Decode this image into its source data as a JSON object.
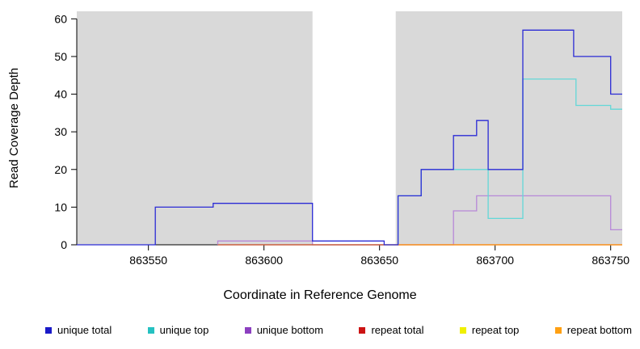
{
  "chart_data": {
    "type": "line",
    "subtype": "step",
    "title": "",
    "xlabel": "Coordinate in Reference Genome",
    "ylabel": "Read Coverage Depth",
    "xlim": [
      863519,
      863755
    ],
    "ylim": [
      0,
      62
    ],
    "xticks": [
      863550,
      863600,
      863650,
      863700,
      863750
    ],
    "yticks": [
      0,
      10,
      20,
      30,
      40,
      50,
      60
    ],
    "plot_background": "#d9d9d9",
    "masked_region": {
      "x0": 863621,
      "x1": 863657,
      "color": "#ffffff"
    },
    "series": [
      {
        "name": "unique total",
        "color": "#2b2bd5",
        "swatch": "#1a1ac8",
        "points": [
          [
            863519,
            0
          ],
          [
            863553,
            0
          ],
          [
            863553,
            10
          ],
          [
            863578,
            10
          ],
          [
            863578,
            11
          ],
          [
            863621,
            11
          ],
          [
            863621,
            1
          ],
          [
            863652,
            1
          ],
          [
            863652,
            0
          ],
          [
            863658,
            0
          ],
          [
            863658,
            13
          ],
          [
            863668,
            13
          ],
          [
            863668,
            20
          ],
          [
            863682,
            20
          ],
          [
            863682,
            29
          ],
          [
            863692,
            29
          ],
          [
            863692,
            33
          ],
          [
            863697,
            33
          ],
          [
            863697,
            20
          ],
          [
            863712,
            20
          ],
          [
            863712,
            57
          ],
          [
            863734,
            57
          ],
          [
            863734,
            50
          ],
          [
            863750,
            50
          ],
          [
            863750,
            40
          ],
          [
            863755,
            40
          ]
        ]
      },
      {
        "name": "unique top",
        "color": "#63d8d8",
        "swatch": "#25c1c1",
        "points": [
          [
            863658,
            0
          ],
          [
            863658,
            13
          ],
          [
            863668,
            13
          ],
          [
            863668,
            20
          ],
          [
            863697,
            20
          ],
          [
            863697,
            7
          ],
          [
            863712,
            7
          ],
          [
            863712,
            44
          ],
          [
            863735,
            44
          ],
          [
            863735,
            37
          ],
          [
            863750,
            37
          ],
          [
            863750,
            36
          ],
          [
            863755,
            36
          ]
        ]
      },
      {
        "name": "unique bottom",
        "color": "#b788d8",
        "swatch": "#8c3fc0",
        "points": [
          [
            863580,
            0
          ],
          [
            863580,
            1
          ],
          [
            863621,
            1
          ],
          [
            863621,
            0
          ],
          [
            863682,
            0
          ],
          [
            863682,
            9
          ],
          [
            863692,
            9
          ],
          [
            863692,
            13
          ],
          [
            863750,
            13
          ],
          [
            863750,
            4
          ],
          [
            863755,
            4
          ]
        ]
      },
      {
        "name": "repeat total",
        "color": "#c04040",
        "swatch": "#cc1414",
        "points": [
          [
            863580,
            0
          ],
          [
            863755,
            0
          ]
        ]
      },
      {
        "name": "repeat top",
        "color": "#ffff00",
        "swatch": "#f0f000",
        "points": [
          [
            863580,
            0
          ],
          [
            863755,
            0
          ]
        ]
      },
      {
        "name": "repeat bottom",
        "color": "#ff9326",
        "swatch": "#ffa013",
        "points": [
          [
            863658,
            0
          ],
          [
            863755,
            0
          ]
        ]
      }
    ],
    "draw_order": [
      2,
      4,
      3,
      5,
      1,
      0
    ]
  },
  "legend": {
    "items": [
      {
        "label": "unique total",
        "swatch": "#1a1ac8"
      },
      {
        "label": "unique top",
        "swatch": "#25c1c1"
      },
      {
        "label": "unique bottom",
        "swatch": "#8c3fc0"
      },
      {
        "label": "repeat total",
        "swatch": "#cc1414"
      },
      {
        "label": "repeat top",
        "swatch": "#f0f000"
      },
      {
        "label": "repeat bottom",
        "swatch": "#ffa013"
      }
    ]
  }
}
